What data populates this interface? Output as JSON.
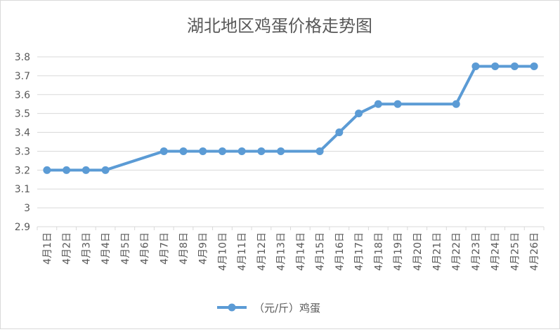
{
  "chart_data": {
    "type": "line",
    "title": "湖北地区鸡蛋价格走势图",
    "xlabel": "",
    "ylabel": "",
    "categories": [
      "4月1日",
      "4月2日",
      "4月3日",
      "4月4日",
      "4月5日",
      "4月6日",
      "4月7日",
      "4月8日",
      "4月9日",
      "4月10日",
      "4月11日",
      "4月12日",
      "4月13日",
      "4月14日",
      "4月15日",
      "4月16日",
      "4月17日",
      "4月18日",
      "4月19日",
      "4月20日",
      "4月21日",
      "4月22日",
      "4月23日",
      "4月24日",
      "4月25日",
      "4月26日"
    ],
    "series": [
      {
        "name": "（元/斤）鸡蛋",
        "color": "#5b9bd5",
        "values": [
          3.2,
          3.2,
          3.2,
          3.2,
          null,
          null,
          3.3,
          3.3,
          3.3,
          3.3,
          3.3,
          3.3,
          3.3,
          null,
          3.3,
          3.4,
          3.5,
          3.55,
          3.55,
          null,
          null,
          3.55,
          3.75,
          3.75,
          3.75,
          3.75
        ]
      }
    ],
    "ylim": [
      2.9,
      3.8
    ],
    "yticks": [
      "2.9",
      "3",
      "3.1",
      "3.2",
      "3.3",
      "3.4",
      "3.5",
      "3.6",
      "3.7",
      "3.8"
    ],
    "grid": true,
    "legend_position": "bottom",
    "gridline_color": "#d9d9d9",
    "axis_text_color": "#595959"
  }
}
